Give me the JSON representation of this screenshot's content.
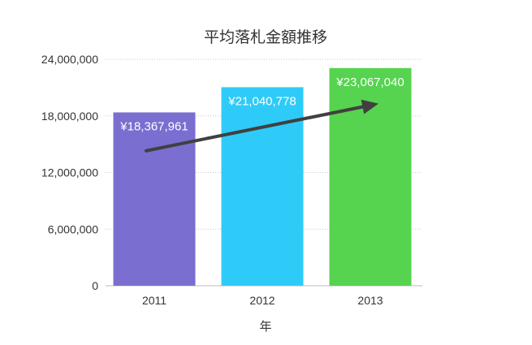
{
  "chart_data": {
    "type": "bar",
    "title": "平均落札金額推移",
    "xlabel": "年",
    "ylabel": "",
    "categories": [
      "2011",
      "2012",
      "2013"
    ],
    "values": [
      18367961,
      21040778,
      23067040
    ],
    "data_labels": [
      "¥18,367,961",
      "¥21,040,778",
      "¥23,067,040"
    ],
    "ylim": [
      0,
      24000000
    ],
    "yticks": [
      0,
      6000000,
      12000000,
      18000000,
      24000000
    ],
    "ytick_labels": [
      "0",
      "6,000,000",
      "12,000,000",
      "18,000,000",
      "24,000,000"
    ],
    "bar_colors": [
      "#7a6fd0",
      "#2ecbf8",
      "#56d34f"
    ],
    "grid": true,
    "legend": "none",
    "trend_arrow": {
      "from_value": 14300000,
      "to_value": 19300000,
      "color": "#404040"
    }
  }
}
